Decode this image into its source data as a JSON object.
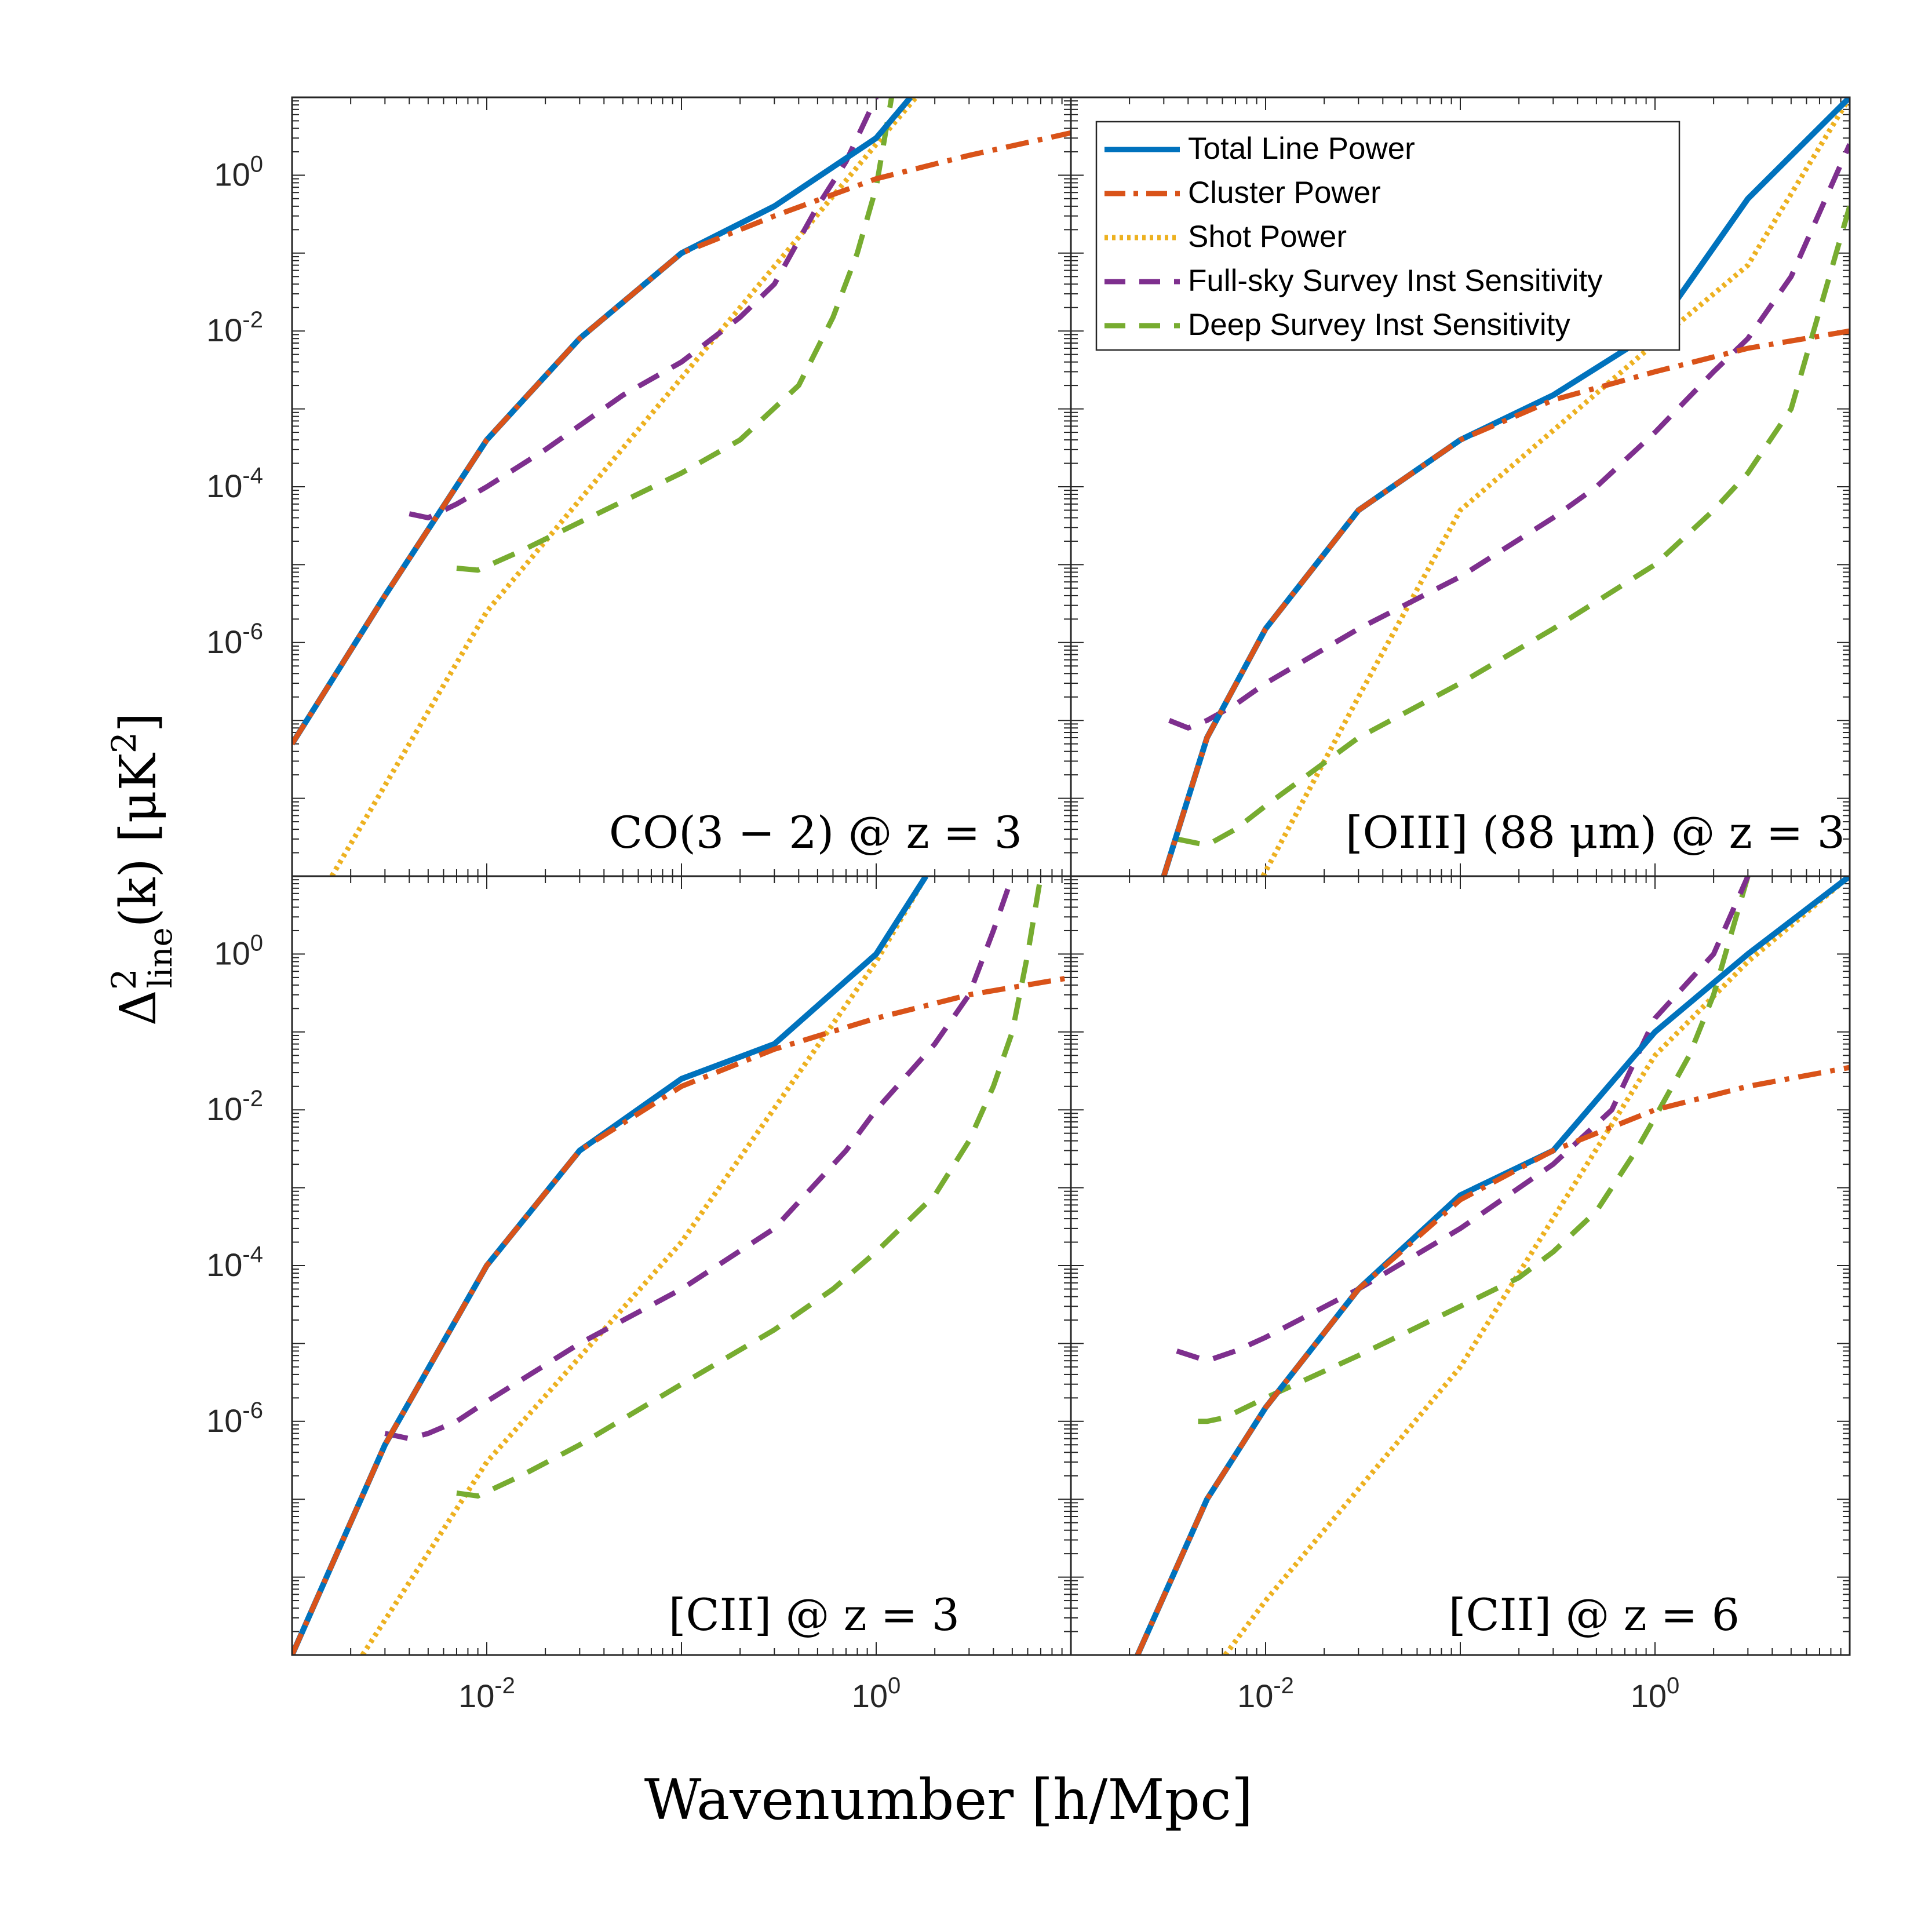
{
  "figure": {
    "ylabel": "Δ²line(k) [μK²]",
    "ylabel_parts": {
      "main": "Δ",
      "sup": "2",
      "sub": "line",
      "rest": "(k) [μK",
      "rest_sup": "2",
      "close": "]"
    },
    "xlabel": "Wavenumber [h/Mpc]"
  },
  "legend": {
    "items": [
      {
        "label": "Total Line Power",
        "series": "total"
      },
      {
        "label": "Cluster Power",
        "series": "cluster"
      },
      {
        "label": "Shot Power",
        "series": "shot"
      },
      {
        "label": "Full-sky Survey Inst Sensitivity",
        "series": "fullsky"
      },
      {
        "label": "Deep Survey Inst Sensitivity",
        "series": "deep"
      }
    ]
  },
  "styles": {
    "total": {
      "color": "#0072BD",
      "dash": "solid"
    },
    "cluster": {
      "color": "#D95319",
      "dash": "dashdot"
    },
    "shot": {
      "color": "#EDB120",
      "dash": "dotted"
    },
    "fullsky": {
      "color": "#7E2F8E",
      "dash": "dashed"
    },
    "deep": {
      "color": "#77AC30",
      "dash": "dashed"
    }
  },
  "axes": {
    "xlim_log10": [
      -3,
      1
    ],
    "ylim_log10": [
      -9,
      1
    ],
    "x_ticks": [
      {
        "log": -2,
        "base": "10",
        "exp": "-2"
      },
      {
        "log": 0,
        "base": "10",
        "exp": "0"
      }
    ],
    "y_ticks": [
      {
        "log": 0,
        "base": "10",
        "exp": "0"
      },
      {
        "log": -2,
        "base": "10",
        "exp": "-2"
      },
      {
        "log": -4,
        "base": "10",
        "exp": "-4"
      },
      {
        "log": -6,
        "base": "10",
        "exp": "-6"
      }
    ]
  },
  "chart_data": [
    {
      "type": "line",
      "panel": "top-left",
      "title": "CO(3 − 2) @ z = 3",
      "xlabel": "Wavenumber [h/Mpc]",
      "ylabel": "Δ²line(k) [μK²]",
      "x_scale": "log",
      "y_scale": "log",
      "xlim": [
        0.001,
        10
      ],
      "ylim": [
        1e-09,
        10
      ],
      "series": [
        {
          "name": "Total Line Power",
          "key": "total",
          "x": [
            0.001,
            0.003,
            0.01,
            0.03,
            0.1,
            0.3,
            1,
            1.5
          ],
          "y": [
            5e-08,
            4e-06,
            0.0004,
            0.008,
            0.1,
            0.4,
            3,
            10
          ]
        },
        {
          "name": "Cluster Power",
          "key": "cluster",
          "x": [
            0.001,
            0.003,
            0.01,
            0.03,
            0.1,
            0.3,
            1,
            3,
            10
          ],
          "y": [
            5e-08,
            4e-06,
            0.0004,
            0.008,
            0.1,
            0.3,
            0.9,
            1.8,
            3.5
          ]
        },
        {
          "name": "Shot Power",
          "key": "shot",
          "x": [
            0.0016,
            0.01,
            0.1,
            1,
            1.6
          ],
          "y": [
            1e-09,
            2.5e-06,
            0.0025,
            2.5,
            10
          ]
        },
        {
          "name": "Full-sky Survey Inst Sensitivity",
          "key": "fullsky",
          "x": [
            0.004,
            0.005,
            0.007,
            0.01,
            0.02,
            0.05,
            0.1,
            0.2,
            0.3,
            0.5,
            0.7,
            1
          ],
          "y": [
            4.5e-05,
            4e-05,
            6e-05,
            0.0001,
            0.0003,
            0.0015,
            0.004,
            0.015,
            0.04,
            0.4,
            1.5,
            10
          ]
        },
        {
          "name": "Deep Survey Inst Sensitivity",
          "key": "deep",
          "x": [
            0.007,
            0.009,
            0.015,
            0.03,
            0.1,
            0.2,
            0.4,
            0.6,
            0.8,
            1,
            1.2
          ],
          "y": [
            9e-06,
            8.5e-06,
            1.5e-05,
            3.5e-05,
            0.00015,
            0.0004,
            0.002,
            0.015,
            0.1,
            0.7,
            10
          ]
        }
      ]
    },
    {
      "type": "line",
      "panel": "top-right",
      "title": "[OIII] (88 μm) @ z = 3",
      "xlabel": "Wavenumber [h/Mpc]",
      "ylabel": "Δ²line(k) [μK²]",
      "x_scale": "log",
      "y_scale": "log",
      "xlim": [
        0.001,
        10
      ],
      "ylim": [
        1e-09,
        10
      ],
      "series": [
        {
          "name": "Total Line Power",
          "key": "total",
          "x": [
            0.003,
            0.005,
            0.01,
            0.03,
            0.1,
            0.3,
            1,
            3,
            10
          ],
          "y": [
            1e-09,
            6e-08,
            1.5e-06,
            5e-05,
            0.0004,
            0.0015,
            0.01,
            0.5,
            10
          ]
        },
        {
          "name": "Cluster Power",
          "key": "cluster",
          "x": [
            0.003,
            0.005,
            0.01,
            0.03,
            0.1,
            0.3,
            1,
            3,
            10
          ],
          "y": [
            1e-09,
            6e-08,
            1.5e-06,
            5e-05,
            0.0004,
            0.0013,
            0.003,
            0.006,
            0.01
          ]
        },
        {
          "name": "Shot Power",
          "key": "shot",
          "x": [
            0.0097,
            0.03,
            0.1,
            1,
            3,
            10
          ],
          "y": [
            1e-09,
            2e-07,
            5e-05,
            0.007,
            0.07,
            10
          ]
        },
        {
          "name": "Full-sky Survey Inst Sensitivity",
          "key": "fullsky",
          "x": [
            0.0032,
            0.004,
            0.005,
            0.007,
            0.01,
            0.03,
            0.1,
            0.3,
            0.5,
            1,
            2,
            3,
            5,
            10
          ],
          "y": [
            1e-07,
            8e-08,
            1e-07,
            1.6e-07,
            3e-07,
            1.5e-06,
            7e-06,
            4e-05,
            0.0001,
            0.0005,
            0.003,
            0.008,
            0.05,
            2.5
          ]
        },
        {
          "name": "Deep Survey Inst Sensitivity",
          "key": "deep",
          "x": [
            0.0035,
            0.005,
            0.007,
            0.01,
            0.03,
            0.1,
            0.3,
            1,
            2,
            3,
            5,
            10
          ],
          "y": [
            3e-09,
            2.5e-09,
            4e-09,
            8e-09,
            6e-08,
            3e-07,
            1.5e-06,
            1e-05,
            5e-05,
            0.00015,
            0.001,
            0.4
          ]
        }
      ]
    },
    {
      "type": "line",
      "panel": "bottom-left",
      "title": "[CII] @ z = 3",
      "xlabel": "Wavenumber [h/Mpc]",
      "ylabel": "Δ²line(k) [μK²]",
      "x_scale": "log",
      "y_scale": "log",
      "xlim": [
        0.001,
        10
      ],
      "ylim": [
        1e-09,
        10
      ],
      "series": [
        {
          "name": "Total Line Power",
          "key": "total",
          "x": [
            0.001,
            0.003,
            0.01,
            0.03,
            0.1,
            0.3,
            1,
            1.8
          ],
          "y": [
            1e-09,
            5e-07,
            0.0001,
            0.003,
            0.025,
            0.07,
            1,
            10
          ]
        },
        {
          "name": "Cluster Power",
          "key": "cluster",
          "x": [
            0.001,
            0.003,
            0.01,
            0.03,
            0.1,
            0.3,
            1,
            3,
            10
          ],
          "y": [
            1e-09,
            5e-07,
            0.0001,
            0.003,
            0.02,
            0.06,
            0.15,
            0.3,
            0.5
          ]
        },
        {
          "name": "Shot Power",
          "key": "shot",
          "x": [
            0.0023,
            0.01,
            0.1,
            1,
            1.8
          ],
          "y": [
            1e-09,
            3e-07,
            0.0002,
            0.8,
            10
          ]
        },
        {
          "name": "Full-sky Survey Inst Sensitivity",
          "key": "fullsky",
          "x": [
            0.003,
            0.004,
            0.005,
            0.007,
            0.01,
            0.03,
            0.1,
            0.3,
            0.7,
            1,
            2,
            3,
            4,
            5
          ],
          "y": [
            7e-07,
            6e-07,
            7e-07,
            1e-06,
            1.8e-06,
            1e-05,
            5e-05,
            0.0003,
            0.003,
            0.01,
            0.07,
            0.3,
            2,
            10
          ]
        },
        {
          "name": "Deep Survey Inst Sensitivity",
          "key": "deep",
          "x": [
            0.007,
            0.009,
            0.015,
            0.03,
            0.1,
            0.3,
            0.6,
            1,
            2,
            3,
            4,
            5,
            6,
            7
          ],
          "y": [
            1.2e-07,
            1.1e-07,
            2e-07,
            5e-07,
            3e-06,
            1.5e-05,
            5e-05,
            0.00015,
            0.0008,
            0.004,
            0.02,
            0.1,
            1,
            10
          ]
        }
      ]
    },
    {
      "type": "line",
      "panel": "bottom-right",
      "title": "[CII] @ z = 6",
      "xlabel": "Wavenumber [h/Mpc]",
      "ylabel": "Δ²line(k) [μK²]",
      "x_scale": "log",
      "y_scale": "log",
      "xlim": [
        0.001,
        10
      ],
      "ylim": [
        1e-09,
        10
      ],
      "series": [
        {
          "name": "Total Line Power",
          "key": "total",
          "x": [
            0.0022,
            0.005,
            0.01,
            0.03,
            0.1,
            0.3,
            1,
            3,
            10
          ],
          "y": [
            1e-09,
            1e-07,
            1.5e-06,
            5e-05,
            0.0008,
            0.003,
            0.1,
            1,
            10
          ]
        },
        {
          "name": "Cluster Power",
          "key": "cluster",
          "x": [
            0.0022,
            0.005,
            0.01,
            0.03,
            0.1,
            0.3,
            1,
            3,
            10
          ],
          "y": [
            1e-09,
            1e-07,
            1.5e-06,
            5e-05,
            0.0007,
            0.003,
            0.01,
            0.02,
            0.035
          ]
        },
        {
          "name": "Shot Power",
          "key": "shot",
          "x": [
            0.0062,
            0.01,
            0.1,
            1,
            3,
            10
          ],
          "y": [
            1e-09,
            5e-09,
            5e-06,
            0.05,
            0.8,
            10
          ]
        },
        {
          "name": "Full-sky Survey Inst Sensitivity",
          "key": "fullsky",
          "x": [
            0.0035,
            0.005,
            0.007,
            0.01,
            0.03,
            0.1,
            0.3,
            0.6,
            1,
            2,
            3
          ],
          "y": [
            8e-06,
            6e-06,
            8e-06,
            1.2e-05,
            5e-05,
            0.0003,
            0.002,
            0.01,
            0.15,
            1,
            10
          ]
        },
        {
          "name": "Deep Survey Inst Sensitivity",
          "key": "deep",
          "x": [
            0.0045,
            0.005,
            0.006,
            0.007,
            0.01,
            0.03,
            0.1,
            0.2,
            0.3,
            0.5,
            0.8,
            1,
            1.5,
            2,
            3
          ],
          "y": [
            1e-06,
            1e-06,
            1.1e-06,
            1.3e-06,
            2e-06,
            7e-06,
            3e-05,
            7e-05,
            0.00015,
            0.0005,
            0.003,
            0.008,
            0.05,
            0.3,
            10
          ]
        }
      ]
    }
  ]
}
